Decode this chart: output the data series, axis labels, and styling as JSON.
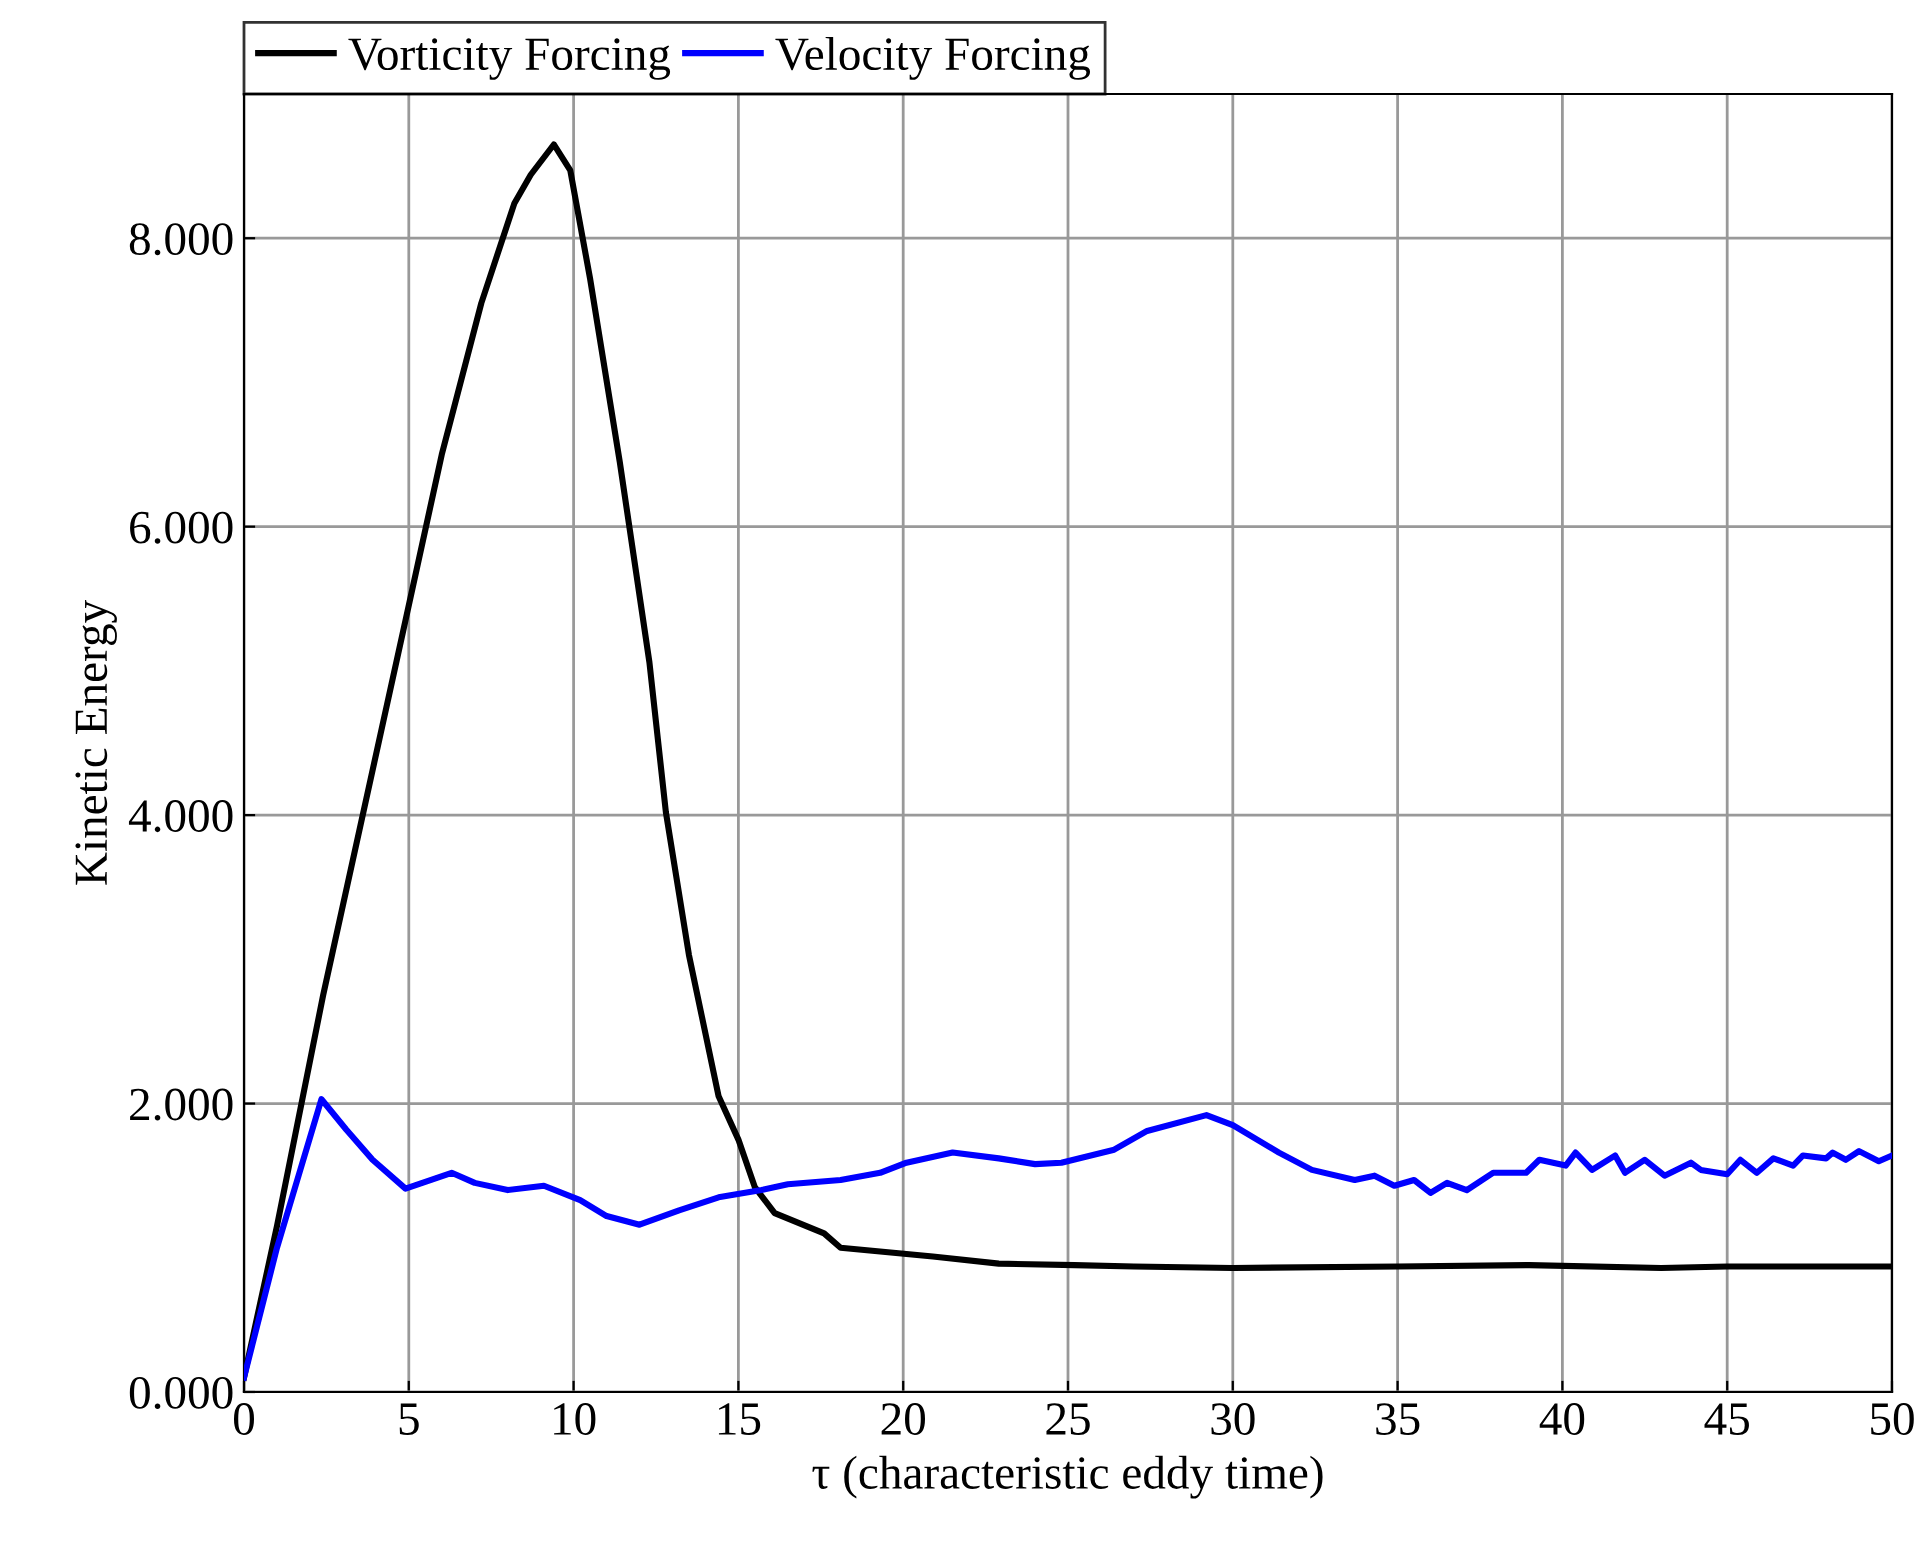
{
  "chart_data": {
    "type": "line",
    "xlabel": "τ (characteristic eddy time)",
    "ylabel": "Kinetic Energy",
    "xlim": [
      0,
      50
    ],
    "ylim": [
      0,
      9
    ],
    "xticks": [
      0,
      5,
      10,
      15,
      20,
      25,
      30,
      35,
      40,
      45,
      50
    ],
    "yticks": [
      {
        "value": 0,
        "label": "0.000"
      },
      {
        "value": 2,
        "label": "2.000"
      },
      {
        "value": 4,
        "label": "4.000"
      },
      {
        "value": 6,
        "label": "6.000"
      },
      {
        "value": 8,
        "label": "8.000"
      }
    ],
    "grid": true,
    "legend": "top left",
    "line_style": "solid",
    "marker": "none",
    "series": [
      {
        "name": "Vorticity Forcing",
        "color": "#000000",
        "x": [
          0,
          1,
          2.4,
          4.9,
          6,
          7.2,
          8.2,
          8.7,
          9.4,
          9.9,
          10.5,
          11.4,
          12.3,
          12.8,
          13.5,
          14.4,
          15.0,
          15.5,
          16.1,
          17.6,
          18.1,
          20.9,
          22.9,
          25.2,
          27,
          30,
          35,
          39,
          43,
          45,
          50
        ],
        "values": [
          0.1,
          1.15,
          2.75,
          5.35,
          6.5,
          7.55,
          8.24,
          8.44,
          8.65,
          8.47,
          7.72,
          6.45,
          5.06,
          4.02,
          3.03,
          2.05,
          1.75,
          1.42,
          1.24,
          1.1,
          1.0,
          0.94,
          0.89,
          0.88,
          0.87,
          0.86,
          0.87,
          0.88,
          0.86,
          0.87,
          0.87
        ]
      },
      {
        "name": "Velocity Forcing",
        "color": "#0000ff",
        "x": [
          0,
          1,
          2.35,
          3.1,
          3.9,
          4.9,
          6.3,
          7.0,
          8.0,
          9.1,
          10.2,
          11.0,
          12.0,
          13.2,
          14.4,
          15.7,
          16.5,
          18.1,
          19.3,
          20.1,
          21.5,
          22.9,
          24.0,
          24.8,
          26.4,
          27.4,
          29.2,
          30.0,
          31.4,
          32.4,
          33.7,
          34.3,
          34.9,
          35.5,
          36.0,
          36.5,
          37.1,
          37.9,
          38.9,
          39.3,
          40.1,
          40.4,
          40.9,
          41.6,
          41.9,
          42.5,
          43.1,
          43.9,
          44.2,
          45.0,
          45.4,
          45.9,
          46.4,
          47.0,
          47.3,
          48.0,
          48.2,
          48.6,
          49.0,
          49.6,
          50
        ],
        "values": [
          0.1,
          1.0,
          2.03,
          1.82,
          1.61,
          1.41,
          1.52,
          1.45,
          1.4,
          1.43,
          1.33,
          1.22,
          1.16,
          1.26,
          1.35,
          1.4,
          1.44,
          1.47,
          1.52,
          1.59,
          1.66,
          1.62,
          1.58,
          1.59,
          1.68,
          1.81,
          1.92,
          1.85,
          1.66,
          1.54,
          1.47,
          1.5,
          1.43,
          1.47,
          1.38,
          1.45,
          1.4,
          1.52,
          1.52,
          1.61,
          1.57,
          1.66,
          1.54,
          1.64,
          1.52,
          1.61,
          1.5,
          1.59,
          1.54,
          1.51,
          1.61,
          1.52,
          1.62,
          1.57,
          1.64,
          1.62,
          1.66,
          1.61,
          1.67,
          1.6,
          1.64
        ]
      }
    ]
  }
}
